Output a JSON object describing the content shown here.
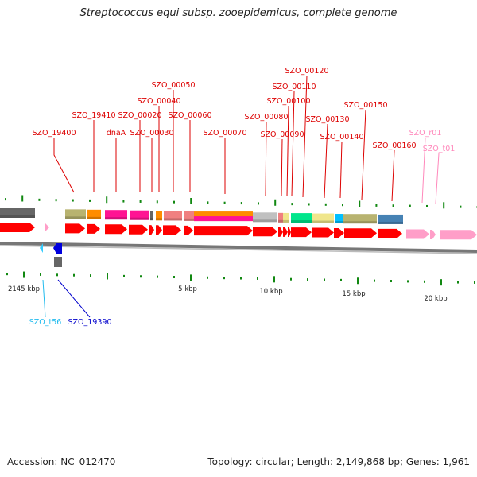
{
  "title": "Streptococcus equi subsp. zooepidemicus, complete genome",
  "footer": {
    "accession": "Accession: NC_012470",
    "summary": "Topology: circular; Length: 2,149,868 bp; Genes: 1,961"
  },
  "colors": {
    "gene": "#ff0000",
    "rna": "#ff9ec8",
    "trna_minus": "#33ccff",
    "gene_minus": "#0000dd",
    "tick": "#118811",
    "backbone": "#777777"
  },
  "scale_labels": [
    "2145 kbp",
    "5 kbp",
    "10 kbp",
    "15 kbp",
    "20 kbp"
  ],
  "top_labels": [
    {
      "text": "SZO_19400",
      "color": "#dd0000"
    },
    {
      "text": "SZO_19410",
      "color": "#dd0000"
    },
    {
      "text": "dnaA",
      "color": "#dd0000"
    },
    {
      "text": "SZO_00020",
      "color": "#dd0000"
    },
    {
      "text": "SZO_00030",
      "color": "#dd0000"
    },
    {
      "text": "SZO_00040",
      "color": "#dd0000"
    },
    {
      "text": "SZO_00050",
      "color": "#dd0000"
    },
    {
      "text": "SZO_00060",
      "color": "#dd0000"
    },
    {
      "text": "SZO_00070",
      "color": "#dd0000"
    },
    {
      "text": "SZO_00080",
      "color": "#dd0000"
    },
    {
      "text": "SZO_00090",
      "color": "#dd0000"
    },
    {
      "text": "SZO_00100",
      "color": "#dd0000"
    },
    {
      "text": "SZO_00110",
      "color": "#dd0000"
    },
    {
      "text": "SZO_00120",
      "color": "#dd0000"
    },
    {
      "text": "SZO_00130",
      "color": "#dd0000"
    },
    {
      "text": "SZO_00140",
      "color": "#dd0000"
    },
    {
      "text": "SZO_00150",
      "color": "#dd0000"
    },
    {
      "text": "SZO_00160",
      "color": "#dd0000"
    },
    {
      "text": "SZO_r01",
      "color": "#ff88bb"
    },
    {
      "text": "SZO_t01",
      "color": "#ff88bb"
    }
  ],
  "bottom_labels": [
    {
      "text": "SZO_t56",
      "color": "#22bbee"
    },
    {
      "text": "SZO_19390",
      "color": "#0000cc"
    }
  ],
  "cog_colors": [
    "#666666",
    "#b8b370",
    "#ff8c00",
    "#ff1493",
    "#ff1493",
    "#666666",
    "#ff8c00",
    "#f08080",
    "#f08080",
    "#ff8c00",
    "#c0c0c0",
    "#f08080",
    "#f0e68c",
    "#00e68c",
    "#f0e68c",
    "#00bfff",
    "#b8b370",
    "#4682b4"
  ]
}
